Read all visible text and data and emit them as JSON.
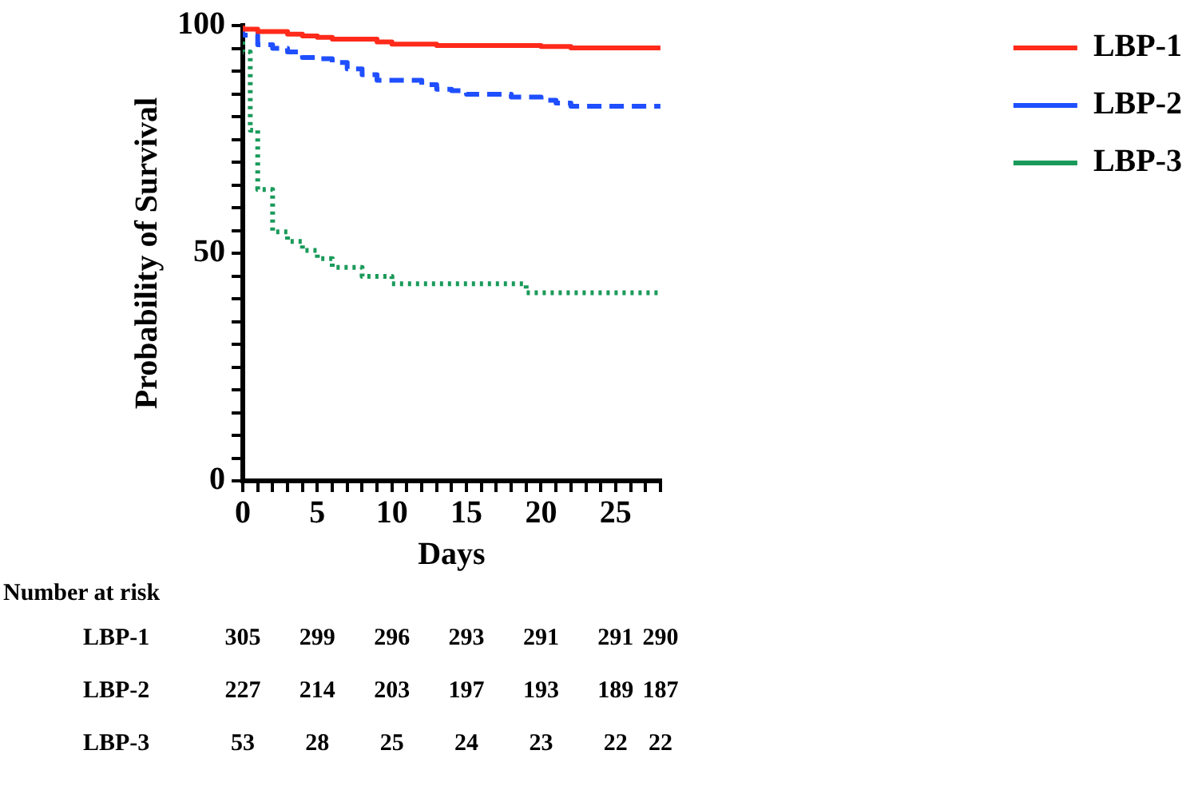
{
  "chart_data": {
    "type": "step",
    "xlabel": "Days",
    "ylabel": "Probability of Survival",
    "xlim": [
      0,
      28
    ],
    "ylim": [
      0,
      100
    ],
    "xticks": [
      0,
      {
        "value": 1,
        "label": null
      },
      {
        "value": 2,
        "label": null
      },
      {
        "value": 3,
        "label": null
      },
      {
        "value": 4,
        "label": null
      },
      5,
      {
        "value": 6,
        "label": null
      },
      {
        "value": 7,
        "label": null
      },
      {
        "value": 8,
        "label": null
      },
      {
        "value": 9,
        "label": null
      },
      10,
      {
        "value": 11,
        "label": null
      },
      {
        "value": 12,
        "label": null
      },
      {
        "value": 13,
        "label": null
      },
      {
        "value": 14,
        "label": null
      },
      15,
      {
        "value": 16,
        "label": null
      },
      {
        "value": 17,
        "label": null
      },
      {
        "value": 18,
        "label": null
      },
      {
        "value": 19,
        "label": null
      },
      20,
      {
        "value": 21,
        "label": null
      },
      {
        "value": 22,
        "label": null
      },
      {
        "value": 23,
        "label": null
      },
      {
        "value": 24,
        "label": null
      },
      25,
      {
        "value": 26,
        "label": null
      },
      {
        "value": 27,
        "label": null
      },
      {
        "value": 28,
        "label": null
      }
    ],
    "yticks": [
      0,
      {
        "value": 5,
        "label": null
      },
      {
        "value": 10,
        "label": null
      },
      {
        "value": 15,
        "label": null
      },
      {
        "value": 20,
        "label": null
      },
      {
        "value": 25,
        "label": null
      },
      {
        "value": 30,
        "label": null
      },
      {
        "value": 35,
        "label": null
      },
      {
        "value": 40,
        "label": null
      },
      {
        "value": 45,
        "label": null
      },
      50,
      {
        "value": 55,
        "label": null
      },
      {
        "value": 60,
        "label": null
      },
      {
        "value": 65,
        "label": null
      },
      {
        "value": 70,
        "label": null
      },
      {
        "value": 75,
        "label": null
      },
      {
        "value": 80,
        "label": null
      },
      {
        "value": 85,
        "label": null
      },
      {
        "value": 90,
        "label": null
      },
      {
        "value": 95,
        "label": null
      },
      100
    ],
    "grid": false,
    "legend": "top right",
    "marker": "none",
    "series": [
      {
        "name": "LBP-1",
        "color": "#ff2a1a",
        "line_style": "solid",
        "x": [
          0,
          1,
          3,
          4,
          5,
          6,
          9,
          10,
          13,
          20,
          22,
          26,
          28
        ],
        "values": [
          100,
          99.2,
          98.7,
          98.1,
          97.7,
          97.4,
          97.0,
          96.4,
          95.9,
          95.6,
          95.4,
          95.1,
          95.1
        ]
      },
      {
        "name": "LBP-2",
        "color": "#1f4fff",
        "line_style": "dashed",
        "x": [
          0,
          1,
          2,
          3,
          4,
          5,
          6,
          7,
          8,
          9,
          12,
          13,
          14,
          15,
          18,
          20,
          21,
          22,
          27.8,
          28
        ],
        "values": [
          100,
          97.9,
          95.8,
          95.0,
          94.2,
          93.0,
          92.7,
          91.9,
          90.5,
          89.2,
          88.0,
          87.0,
          86.0,
          85.7,
          84.9,
          84.3,
          83.6,
          83.0,
          82.3,
          82.3
        ]
      },
      {
        "name": "LBP-3",
        "color": "#1a9a5a",
        "line_style": "dotted",
        "x": [
          0,
          0.5,
          1,
          2,
          3,
          4,
          5,
          6,
          8,
          10,
          19,
          20,
          28
        ],
        "values": [
          100,
          94.2,
          77.0,
          64.0,
          54.7,
          52.6,
          50.6,
          48.8,
          46.9,
          44.9,
          43.3,
          41.3,
          41.3
        ]
      }
    ],
    "annotations": [
      "Number at risk",
      "LBP-1",
      "305",
      "299",
      "296",
      "293",
      "291",
      "291",
      "290",
      "LBP-2",
      "227",
      "214",
      "203",
      "197",
      "193",
      "189",
      "187",
      "LBP-3",
      "53",
      "28",
      "25",
      "24",
      "23",
      "22",
      "22"
    ]
  }
}
